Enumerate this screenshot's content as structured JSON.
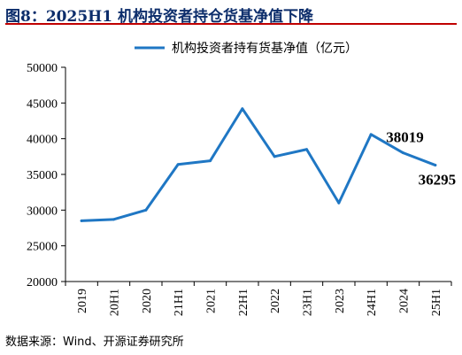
{
  "title": "图8：2025H1 机构投资者持仓货基净值下降",
  "source": "数据来源：Wind、开源证券研究所",
  "colors": {
    "line": "#1f77c4",
    "title": "#0c2d6b",
    "rule": "#c00000"
  },
  "chart_data": {
    "type": "line",
    "categories": [
      "2019",
      "20H1",
      "2020",
      "21H1",
      "2021",
      "22H1",
      "2022",
      "23H1",
      "2023",
      "24H1",
      "2024",
      "25H1"
    ],
    "series": [
      {
        "name": "机构投资者持有货基净值（亿元）",
        "values": [
          28500,
          28700,
          30000,
          36400,
          36900,
          44200,
          37500,
          38500,
          31000,
          40600,
          38019,
          36295
        ]
      }
    ],
    "ylim": [
      20000,
      50000
    ],
    "yticks": [
      20000,
      25000,
      30000,
      35000,
      40000,
      45000,
      50000
    ],
    "grid": false,
    "legend": "top",
    "annotations": [
      {
        "category": "2024",
        "text": "38019"
      },
      {
        "category": "25H1",
        "text": "36295"
      }
    ]
  }
}
